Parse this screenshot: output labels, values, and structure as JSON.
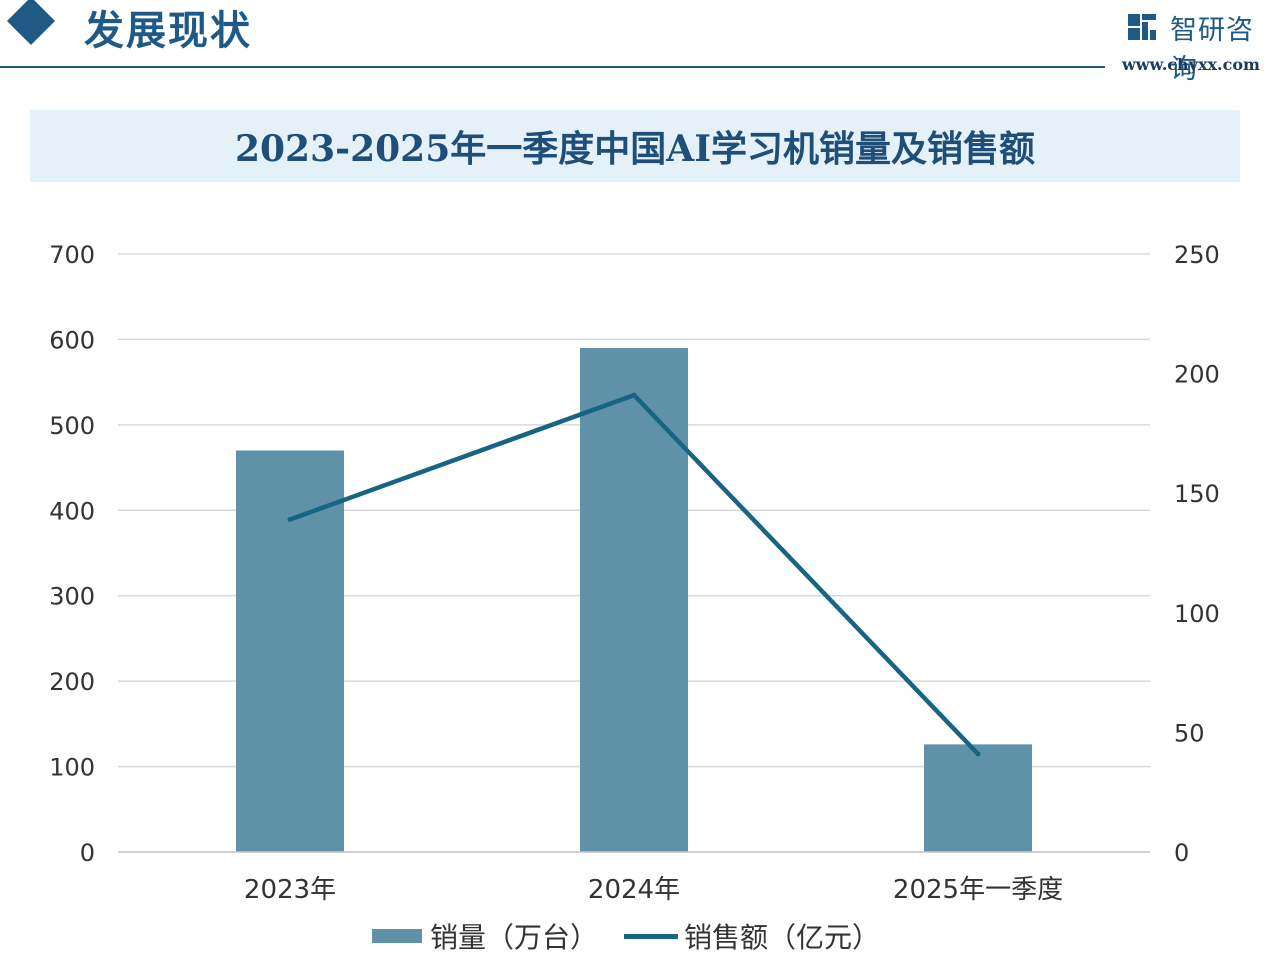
{
  "header": {
    "title": "发展现状",
    "brand_name": "智研咨询",
    "brand_url": "www.chyxx.com"
  },
  "chart_data": {
    "type": "bar",
    "title": "2023-2025年一季度中国AI学习机销量及销售额",
    "categories": [
      "2023年",
      "2024年",
      "2025年一季度"
    ],
    "series": [
      {
        "name": "销量（万台）",
        "type": "bar",
        "axis": "left",
        "values": [
          470,
          590,
          126
        ],
        "color": "#5f91a9"
      },
      {
        "name": "销售额（亿元）",
        "type": "line",
        "axis": "right",
        "values": [
          139,
          191,
          41
        ],
        "color": "#166582"
      }
    ],
    "y_left": {
      "min": 0,
      "max": 700,
      "ticks": [
        "0",
        "100",
        "200",
        "300",
        "400",
        "500",
        "600",
        "700"
      ]
    },
    "y_right": {
      "min": 0,
      "max": 250,
      "ticks": [
        "0",
        "50",
        "100",
        "150",
        "200",
        "250"
      ]
    },
    "grid": true,
    "legend_position": "bottom"
  }
}
